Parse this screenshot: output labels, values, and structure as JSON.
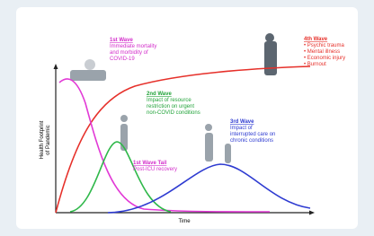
{
  "axes": {
    "y_label": [
      "Health Footprint",
      "of Pandemic"
    ],
    "x_label": "Time"
  },
  "annotations": [
    {
      "title": "1st Wave",
      "lines": [
        "Immediate mortality",
        "and morbidity of",
        "COVID-19"
      ]
    },
    {
      "title": "2nd Wave",
      "lines": [
        "Impact of resource",
        "restriction on urgent",
        "non-COVID conditions"
      ]
    },
    {
      "title": "3rd Wave",
      "lines": [
        "Impact of",
        "interrupted care on",
        "chronic conditions"
      ]
    },
    {
      "title": "1st Wave Tail",
      "lines": [
        "Post-ICU recovery"
      ]
    },
    {
      "title": "4th Wave",
      "lines": [
        "• Psychic trauma",
        "• Mental illness",
        "• Economic injury",
        "• Burnout"
      ]
    }
  ]
}
